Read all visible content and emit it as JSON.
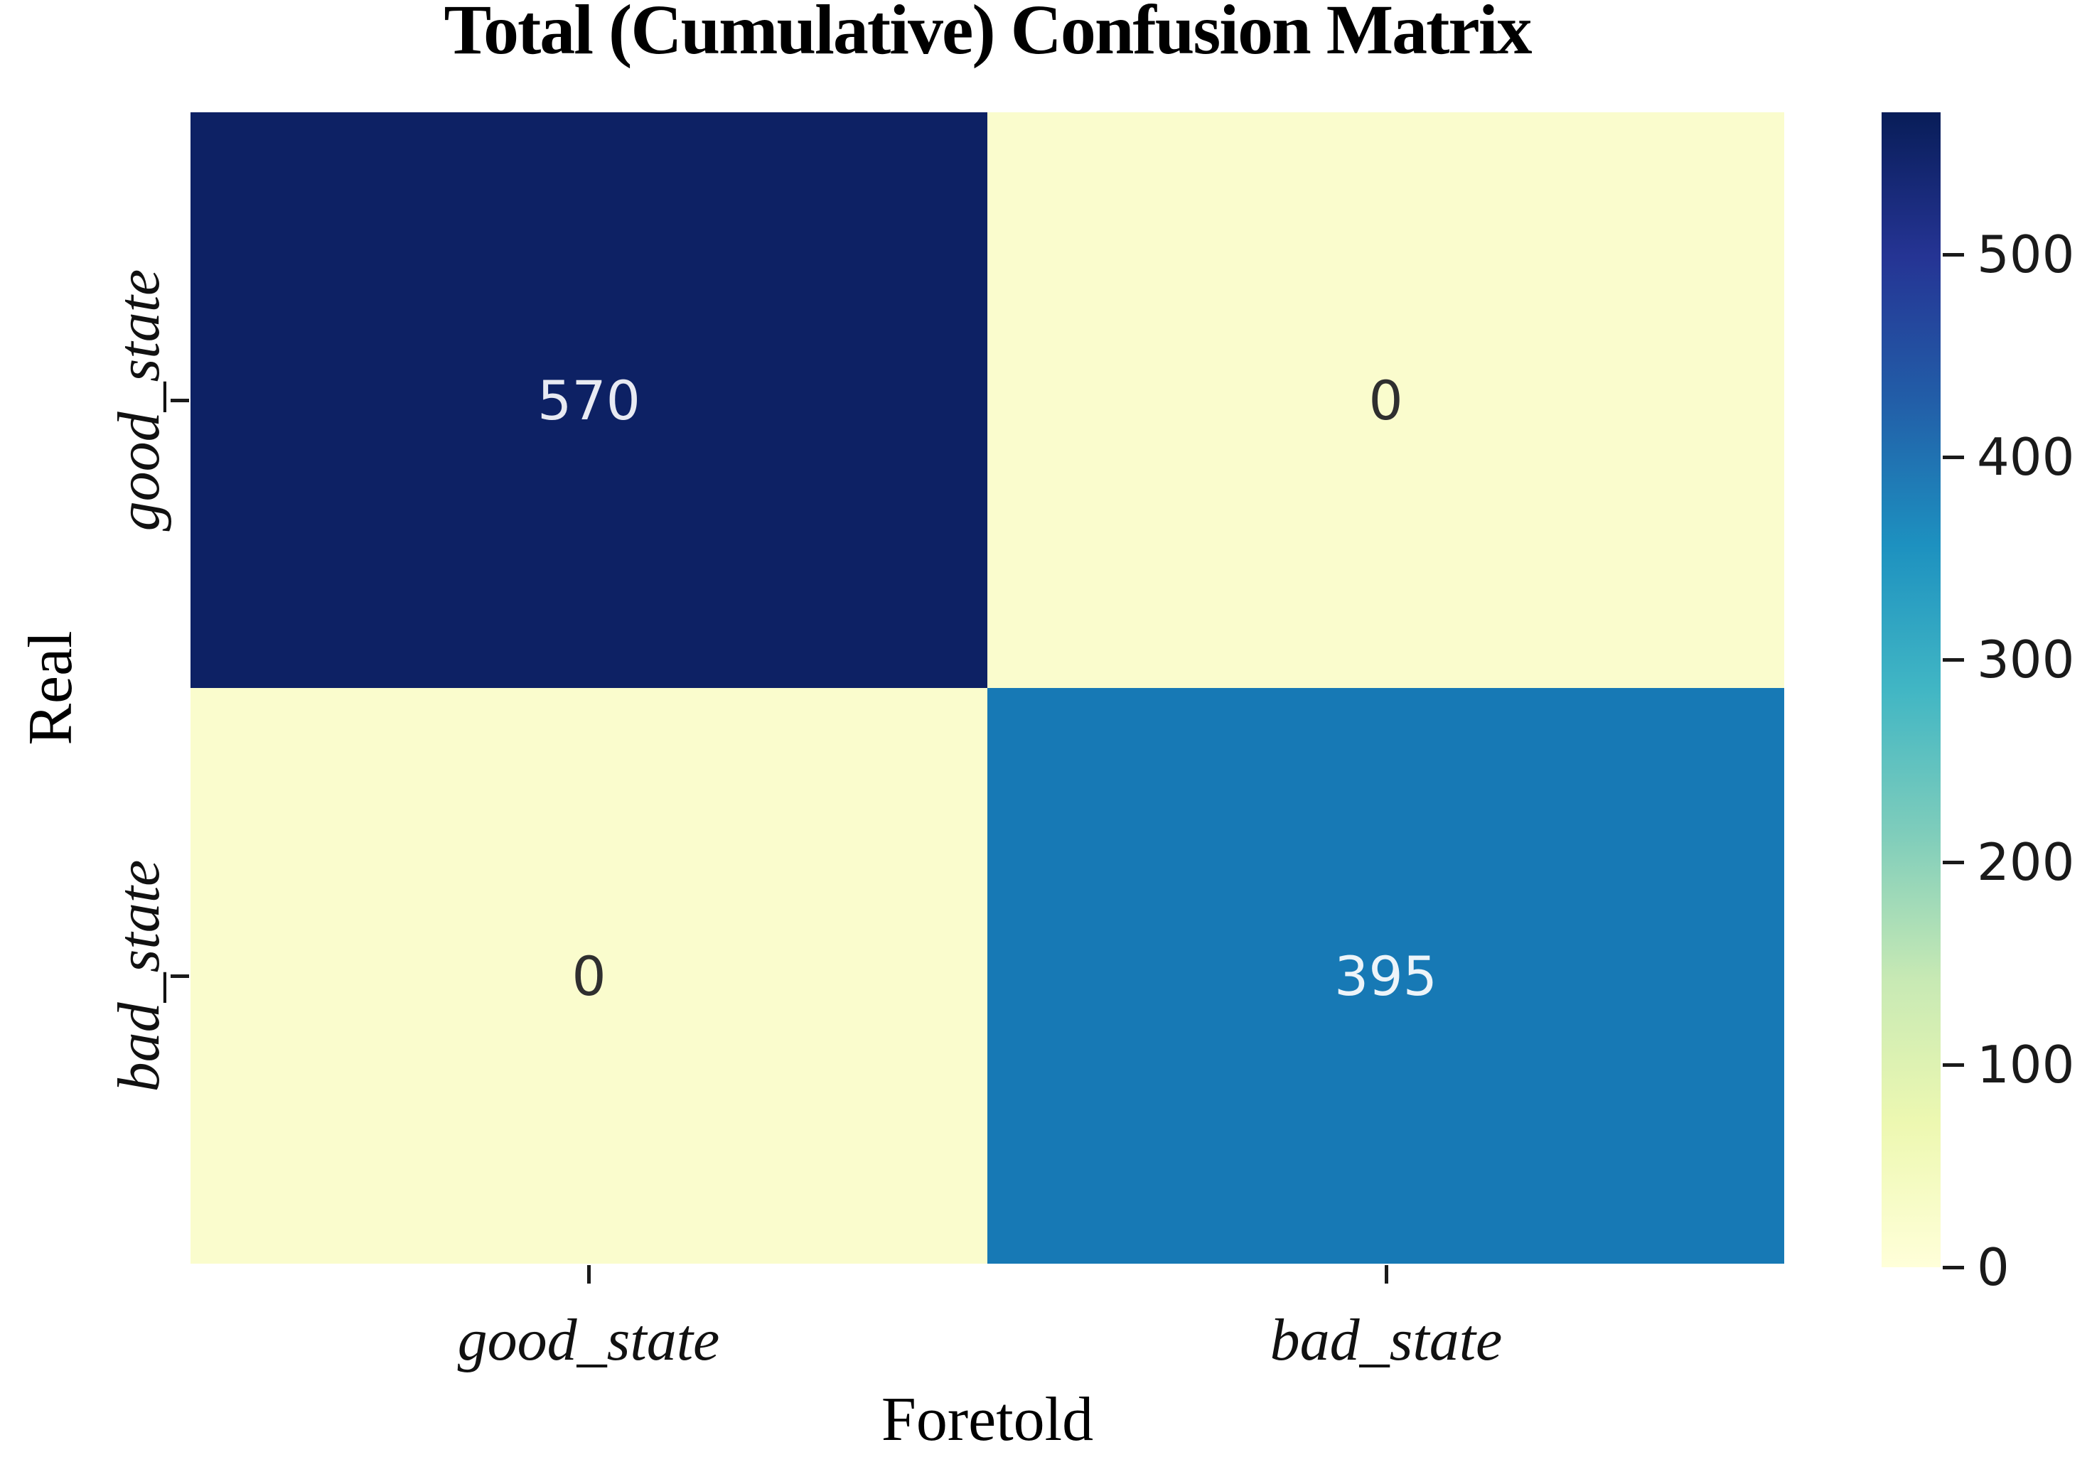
{
  "title": "Total (Cumulative) Confusion Matrix",
  "chart_data": {
    "type": "heatmap",
    "title": "Total (Cumulative) Confusion Matrix",
    "xlabel": "Foretold",
    "ylabel": "Real",
    "x_categories": [
      "good_state",
      "bad_state"
    ],
    "y_categories": [
      "good_state",
      "bad_state"
    ],
    "matrix": [
      [
        570,
        0
      ],
      [
        0,
        395
      ]
    ],
    "vmin": 0,
    "vmax": 570,
    "colormap": "YlGnBu",
    "grid": false,
    "legend_position": "right-colorbar",
    "cell_colors": [
      [
        "#0d2164",
        "#fafccd"
      ],
      [
        "#fafccd",
        "#1779b5"
      ]
    ],
    "cell_text_colors": [
      [
        "#e8eaf2",
        "#2f2f2f"
      ],
      [
        "#2f2f2f",
        "#edf4f9"
      ]
    ],
    "colorbar": {
      "tick_labels": [
        "0",
        "100",
        "200",
        "300",
        "400",
        "500"
      ],
      "gradient_stops_bottom_to_top": [
        "#ffffd9",
        "#edf8b1",
        "#c7e9b4",
        "#7fcdbb",
        "#41b6c4",
        "#1d91c0",
        "#225ea8",
        "#253494",
        "#081d58"
      ]
    }
  }
}
